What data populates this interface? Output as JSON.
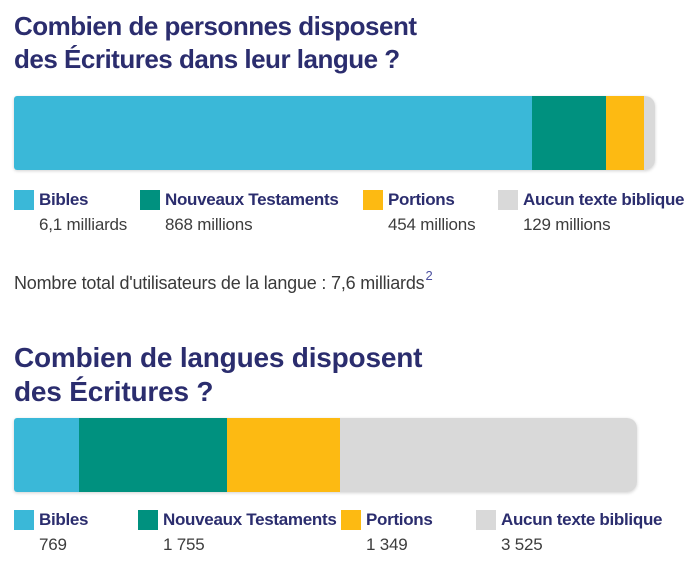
{
  "colors": {
    "bibles": "#3ab8d8",
    "nouveaux_testaments": "#00917f",
    "portions": "#fdba12",
    "aucun_texte": "#d9d9d9",
    "title_navy": "#2b2d6e",
    "body_text": "#3a3a3a",
    "footnote_blue": "#4b4f9f"
  },
  "section1": {
    "title_line1": "Combien de personnes disposent",
    "title_line2": "des Écritures dans leur langue ?",
    "note_text": "Nombre total d'utilisateurs de la langue : 7,6 milliards",
    "note_superscript": "2"
  },
  "section2": {
    "title_line1": "Combien de langues disposent",
    "title_line2": "des Écritures ?"
  },
  "chart_data": [
    {
      "type": "bar",
      "stacked": true,
      "orientation": "horizontal",
      "title": "Combien de personnes disposent des Écritures dans leur langue ?",
      "categories": [
        "Bibles",
        "Nouveaux Testaments",
        "Portions",
        "Aucun texte biblique"
      ],
      "values": [
        6100,
        868,
        454,
        129
      ],
      "value_labels": [
        "6,1 milliards",
        "868 millions",
        "454 millions",
        "129 millions"
      ],
      "colors": [
        "#3ab8d8",
        "#00917f",
        "#fdba12",
        "#d9d9d9"
      ],
      "legend_position": "bottom",
      "note": "Nombre total d'utilisateurs de la langue : 7,6 milliards²"
    },
    {
      "type": "bar",
      "stacked": true,
      "orientation": "horizontal",
      "title": "Combien de langues disposent des Écritures ?",
      "categories": [
        "Bibles",
        "Nouveaux Testaments",
        "Portions",
        "Aucun texte biblique"
      ],
      "values": [
        769,
        1755,
        1349,
        3525
      ],
      "value_labels": [
        "769",
        "1 755",
        "1 349",
        "3 525"
      ],
      "colors": [
        "#3ab8d8",
        "#00917f",
        "#fdba12",
        "#d9d9d9"
      ],
      "legend_position": "bottom"
    }
  ]
}
